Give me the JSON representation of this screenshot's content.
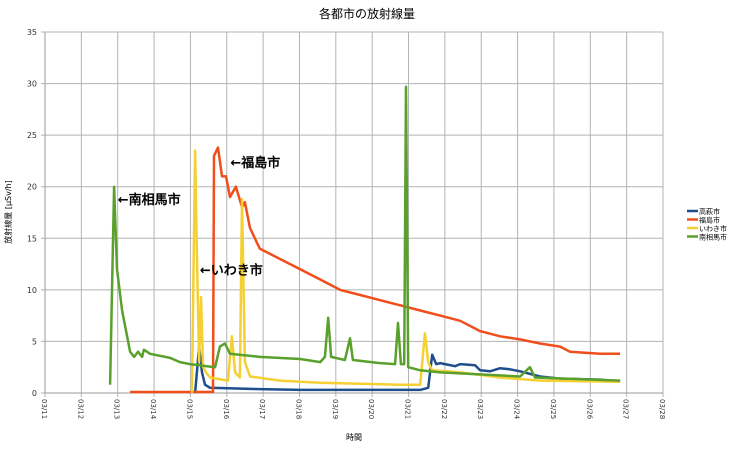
{
  "chart_data": {
    "type": "line",
    "title": "各都市の放射線量",
    "xlabel": "時間",
    "ylabel": "放射線量 [μSv/h]",
    "xlim": [
      11,
      28
    ],
    "ylim": [
      0,
      35
    ],
    "x_ticks": [
      11,
      12,
      13,
      14,
      15,
      16,
      17,
      18,
      19,
      20,
      21,
      22,
      23,
      24,
      25,
      26,
      27,
      28
    ],
    "x_tick_labels": [
      "03/11",
      "03/12",
      "03/13",
      "03/14",
      "03/15",
      "03/16",
      "03/17",
      "03/18",
      "03/19",
      "03/20",
      "03/21",
      "03/22",
      "03/23",
      "03/24",
      "03/25",
      "03/26",
      "03/27",
      "03/28"
    ],
    "y_ticks": [
      0,
      5,
      10,
      15,
      20,
      25,
      30,
      35
    ],
    "y_tick_labels": [
      "0",
      "5",
      "10",
      "15",
      "20",
      "25",
      "30",
      "35"
    ],
    "grid": true,
    "legend_position": "right",
    "series": [
      {
        "name": "高萩市",
        "color": "#1f4e8c",
        "x": [
          15.13,
          15.24,
          15.32,
          15.4,
          15.54,
          16.64,
          18.02,
          21.32,
          21.54,
          21.65,
          21.76,
          21.87,
          22.0,
          22.28,
          22.42,
          22.83,
          22.97,
          23.24,
          23.52,
          23.79,
          24.07,
          24.62,
          25.17,
          26.27,
          26.82
        ],
        "y": [
          0,
          4.5,
          2,
          0.8,
          0.5,
          0.4,
          0.3,
          0.3,
          0.5,
          3.7,
          2.8,
          2.9,
          2.8,
          2.6,
          2.8,
          2.7,
          2.2,
          2.1,
          2.4,
          2.3,
          2.1,
          1.6,
          1.4,
          1.3,
          1.1
        ]
      },
      {
        "name": "福島市",
        "color": "#f04e1c",
        "x": [
          13.34,
          15.62,
          15.65,
          15.76,
          15.87,
          15.98,
          16.09,
          16.25,
          16.42,
          16.5,
          16.64,
          16.91,
          17.46,
          18.02,
          18.57,
          19.12,
          19.67,
          20.22,
          20.77,
          21.32,
          21.87,
          22.42,
          22.97,
          23.52,
          24.07,
          24.62,
          25.17,
          25.44,
          26.27,
          26.82
        ],
        "y": [
          0.1,
          0.1,
          23,
          23.8,
          21,
          21,
          19,
          20,
          18,
          18.5,
          16,
          14,
          13,
          12,
          11,
          10,
          9.5,
          9,
          8.5,
          8,
          7.5,
          7,
          6,
          5.5,
          5.2,
          4.8,
          4.5,
          4,
          3.8,
          3.8
        ]
      },
      {
        "name": "いわき市",
        "color": "#f5d033",
        "x": [
          15.04,
          15.13,
          15.18,
          15.24,
          15.29,
          15.35,
          15.43,
          15.54,
          16.03,
          16.14,
          16.23,
          16.36,
          16.42,
          16.5,
          16.64,
          17.46,
          18.57,
          20.77,
          21.32,
          21.45,
          21.54,
          21.65,
          22.42,
          23.52,
          24.62,
          26.82
        ],
        "y": [
          0,
          23.5,
          13,
          3,
          9.3,
          2.5,
          2,
          1.5,
          1.2,
          5.5,
          2,
          1.5,
          18.8,
          3,
          1.6,
          1.2,
          1,
          0.8,
          0.8,
          5.8,
          3,
          2.2,
          2,
          1.5,
          1.2,
          1.1
        ]
      },
      {
        "name": "南相馬市",
        "color": "#5aa02c",
        "x": [
          12.79,
          12.9,
          12.98,
          13.12,
          13.34,
          13.45,
          13.56,
          13.67,
          13.72,
          13.89,
          14.44,
          14.71,
          14.99,
          15.68,
          15.81,
          15.95,
          16.09,
          16.91,
          18.02,
          18.57,
          18.7,
          18.79,
          18.87,
          19.25,
          19.39,
          19.47,
          20.22,
          20.63,
          20.71,
          20.79,
          20.88,
          20.93,
          20.99,
          21.32,
          21.87,
          22.97,
          24.07,
          24.34,
          24.48,
          26.82
        ],
        "y": [
          0.8,
          20,
          12,
          8,
          4,
          3.5,
          4,
          3.5,
          4.2,
          3.8,
          3.4,
          3.0,
          2.8,
          2.5,
          4.5,
          4.8,
          3.8,
          3.5,
          3.3,
          3,
          3.5,
          7.3,
          3.5,
          3.2,
          5.3,
          3.2,
          2.9,
          2.8,
          6.8,
          2.8,
          2.8,
          29.7,
          2.5,
          2.2,
          2.0,
          1.8,
          1.6,
          2.5,
          1.5,
          1.2
        ]
      }
    ],
    "annotations": [
      {
        "text": "←南相馬市",
        "x": 13.0,
        "y": 18.3
      },
      {
        "text": "←福島市",
        "x": 16.1,
        "y": 21.9
      },
      {
        "text": "←いわき市",
        "x": 15.26,
        "y": 11.5
      }
    ]
  }
}
